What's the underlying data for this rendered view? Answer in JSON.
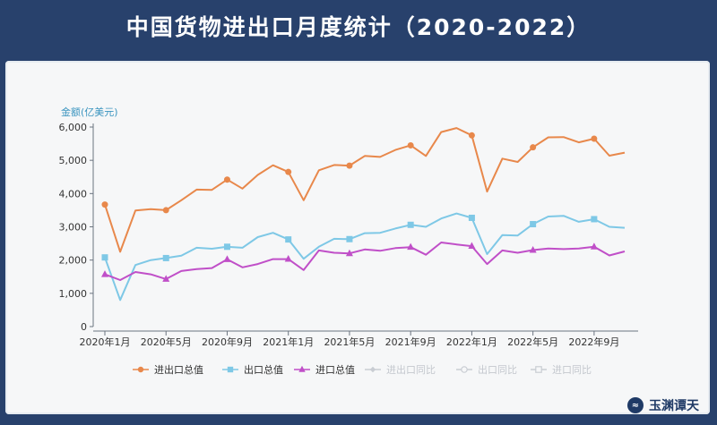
{
  "title": "中国货物进出口月度统计（2020-2022）",
  "brand": {
    "text": "玉渊谭天",
    "logo_icon": "wave-logo-icon"
  },
  "chart_data": {
    "type": "line",
    "ylabel": "金额(亿美元)",
    "ylim": [
      0,
      6000
    ],
    "yticks": [
      0,
      1000,
      2000,
      3000,
      4000,
      5000,
      6000
    ],
    "ytick_labels": [
      "0",
      "1,000",
      "2,000",
      "3,000",
      "4,000",
      "5,000",
      "6,000"
    ],
    "x": [
      "2020-01",
      "2020-02",
      "2020-03",
      "2020-04",
      "2020-05",
      "2020-06",
      "2020-07",
      "2020-08",
      "2020-09",
      "2020-10",
      "2020-11",
      "2020-12",
      "2021-01",
      "2021-02",
      "2021-03",
      "2021-04",
      "2021-05",
      "2021-06",
      "2021-07",
      "2021-08",
      "2021-09",
      "2021-10",
      "2021-11",
      "2021-12",
      "2022-01",
      "2022-02",
      "2022-03",
      "2022-04",
      "2022-05",
      "2022-06",
      "2022-07",
      "2022-08",
      "2022-09",
      "2022-10",
      "2022-11"
    ],
    "xtick_labels": [
      {
        "index": 0,
        "label": "2020年1月"
      },
      {
        "index": 4,
        "label": "2020年5月"
      },
      {
        "index": 8,
        "label": "2020年9月"
      },
      {
        "index": 12,
        "label": "2021年1月"
      },
      {
        "index": 16,
        "label": "2021年5月"
      },
      {
        "index": 20,
        "label": "2021年9月"
      },
      {
        "index": 24,
        "label": "2022年1月"
      },
      {
        "index": 28,
        "label": "2022年5月"
      },
      {
        "index": 32,
        "label": "2022年9月"
      }
    ],
    "grid": false,
    "legend_position": "bottom",
    "series": [
      {
        "name": "进出口总值",
        "color": "#e8884b",
        "marker": "circle",
        "values": [
          3670,
          2250,
          3490,
          3530,
          3500,
          3800,
          4120,
          4110,
          4420,
          4150,
          4560,
          4850,
          4650,
          3800,
          4700,
          4860,
          4840,
          5130,
          5100,
          5310,
          5450,
          5130,
          5850,
          5970,
          5750,
          4060,
          5050,
          4950,
          5390,
          5690,
          5700,
          5540,
          5650,
          5140,
          5230
        ]
      },
      {
        "name": "出口总值",
        "color": "#7ec8e6",
        "marker": "square",
        "values": [
          2080,
          800,
          1850,
          2000,
          2060,
          2130,
          2370,
          2340,
          2400,
          2370,
          2690,
          2820,
          2620,
          2040,
          2400,
          2640,
          2630,
          2810,
          2820,
          2950,
          3060,
          3000,
          3250,
          3400,
          3270,
          2180,
          2750,
          2740,
          3080,
          3310,
          3330,
          3150,
          3230,
          3000,
          2970
        ]
      },
      {
        "name": "进口总值",
        "color": "#c04fc8",
        "marker": "triangle",
        "values": [
          1570,
          1400,
          1640,
          1570,
          1430,
          1670,
          1730,
          1760,
          2020,
          1780,
          1880,
          2030,
          2030,
          1700,
          2290,
          2220,
          2200,
          2320,
          2280,
          2360,
          2390,
          2160,
          2530,
          2470,
          2420,
          1880,
          2290,
          2220,
          2300,
          2350,
          2330,
          2350,
          2400,
          2140,
          2260
        ]
      }
    ],
    "inactive_legend": [
      {
        "name": "进出口同比",
        "marker": "diamond"
      },
      {
        "name": "出口同比",
        "marker": "circle-open"
      },
      {
        "name": "进口同比",
        "marker": "square-open"
      }
    ],
    "inactive_color": "#c9cdd3"
  }
}
